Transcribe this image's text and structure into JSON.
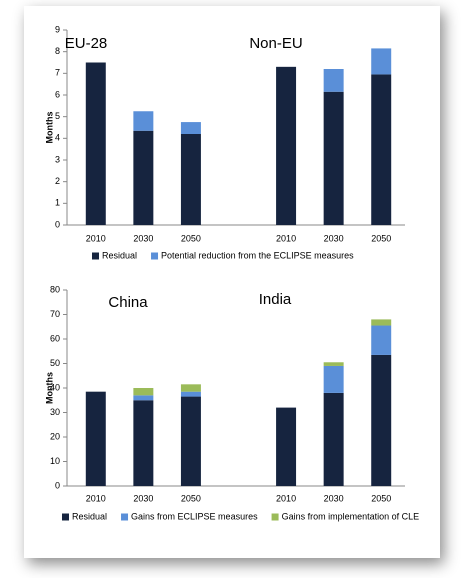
{
  "chart_data": [
    {
      "type": "bar",
      "stacked": true,
      "y_label": "Months",
      "annotations": [
        "EU-28",
        "Non-EU"
      ],
      "categories": [
        "2010",
        "2030",
        "2050",
        null,
        "2010",
        "2030",
        "2050"
      ],
      "series": [
        {
          "name": "Residual",
          "color": "#16243f",
          "values": [
            7.5,
            4.35,
            4.2,
            null,
            7.3,
            6.15,
            6.95
          ]
        },
        {
          "name": "Potential reduction from the ECLIPSE measures",
          "color": "#5a8fd8",
          "values": [
            null,
            0.9,
            0.55,
            null,
            null,
            1.05,
            1.2
          ]
        }
      ],
      "ylim": [
        0,
        9
      ],
      "yticks": [
        0,
        1,
        2,
        3,
        4,
        5,
        6,
        7,
        8,
        9
      ],
      "grid": false
    },
    {
      "type": "bar",
      "stacked": true,
      "y_label": "Months",
      "annotations": [
        "China",
        "India"
      ],
      "categories": [
        "2010",
        "2030",
        "2050",
        null,
        "2010",
        "2030",
        "2050"
      ],
      "series": [
        {
          "name": "Residual",
          "color": "#16243f",
          "values": [
            38.5,
            35,
            36.5,
            null,
            32,
            38,
            53.5
          ]
        },
        {
          "name": "Gains from ECLIPSE measures",
          "color": "#5a8fd8",
          "values": [
            null,
            2,
            2,
            null,
            null,
            11,
            12
          ]
        },
        {
          "name": "Gains from implementation of CLE",
          "color": "#9bbb59",
          "values": [
            null,
            3,
            3,
            null,
            null,
            1.5,
            2.5
          ]
        }
      ],
      "ylim": [
        0,
        80
      ],
      "yticks": [
        0,
        10,
        20,
        30,
        40,
        50,
        60,
        70,
        80
      ],
      "grid": false
    }
  ]
}
